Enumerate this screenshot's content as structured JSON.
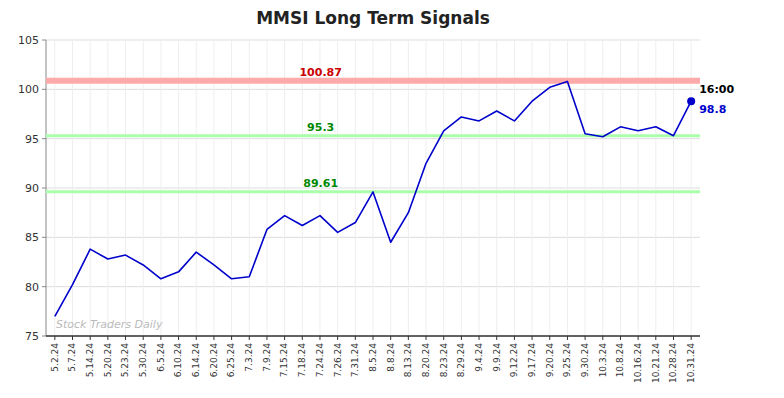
{
  "chart_data": {
    "type": "line",
    "title": "MMSI Long Term Signals",
    "categories": [
      "5.2.24",
      "5.7.24",
      "5.14.24",
      "5.20.24",
      "5.23.24",
      "5.30.24",
      "6.5.24",
      "6.10.24",
      "6.14.24",
      "6.20.24",
      "6.25.24",
      "7.3.24",
      "7.9.24",
      "7.15.24",
      "7.18.24",
      "7.24.24",
      "7.26.24",
      "7.31.24",
      "8.5.24",
      "8.8.24",
      "8.13.24",
      "8.20.24",
      "8.23.24",
      "8.29.24",
      "9.4.24",
      "9.9.24",
      "9.12.24",
      "9.17.24",
      "9.20.24",
      "9.25.24",
      "9.30.24",
      "10.3.24",
      "10.8.24",
      "10.16.24",
      "10.21.24",
      "10.28.24",
      "10.31.24"
    ],
    "values": [
      77.0,
      80.2,
      83.8,
      82.8,
      83.2,
      82.2,
      80.8,
      81.5,
      83.5,
      82.2,
      80.8,
      81.0,
      85.8,
      87.2,
      86.2,
      87.2,
      85.5,
      86.5,
      89.6,
      84.5,
      87.5,
      92.5,
      95.8,
      97.2,
      96.8,
      97.8,
      96.8,
      98.8,
      100.2,
      100.8,
      95.5,
      95.2,
      96.2,
      95.8,
      96.2,
      95.3,
      98.8
    ],
    "color": "#0000cc",
    "hlines": [
      {
        "value": 100.87,
        "label": "100.87",
        "color": "#ffaaaa",
        "label_color": "#cc0000"
      },
      {
        "value": 95.3,
        "label": "95.3",
        "color": "#aaffaa",
        "label_color": "#008800"
      },
      {
        "value": 89.61,
        "label": "89.61",
        "color": "#aaffaa",
        "label_color": "#008800"
      }
    ],
    "last_time": "16:00",
    "last_price": 98.8,
    "watermark": "Stock Traders Daily",
    "ylim": [
      75,
      105
    ],
    "yticks": [
      75,
      80,
      85,
      90,
      95,
      100,
      105
    ],
    "grid": true
  }
}
